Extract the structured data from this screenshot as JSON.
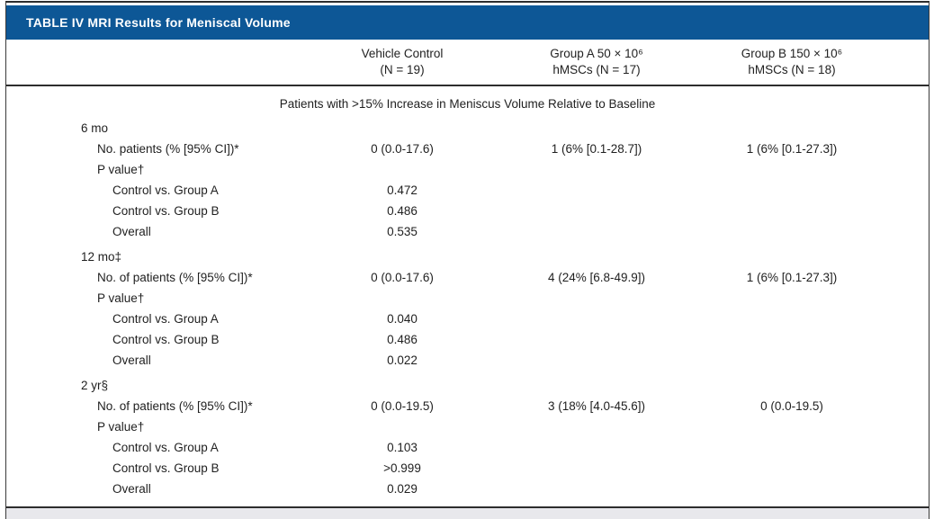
{
  "table": {
    "title": "TABLE IV MRI Results for Meniscal Volume",
    "accent_color": "#0d5796",
    "columns": {
      "vehicle": {
        "line1": "Vehicle Control",
        "line2": "(N = 19)"
      },
      "group_a": {
        "line1": "Group A 50 × 10⁶",
        "line2": "hMSCs (N = 17)"
      },
      "group_b": {
        "line1": "Group B 150 × 10⁶",
        "line2": "hMSCs (N = 18)"
      }
    },
    "span_header": "Patients with >15% Increase in Meniscus Volume Relative to Baseline",
    "rows": [
      {
        "label": "6 mo"
      },
      {
        "label": "No. patients (% [95% CI])*",
        "v1": "0 (0.0-17.6)",
        "v2": "1 (6% [0.1-28.7])",
        "v3": "1 (6% [0.1-27.3])"
      },
      {
        "label": "P value†"
      },
      {
        "label": "Control vs. Group A",
        "v1": "0.472"
      },
      {
        "label": "Control vs. Group B",
        "v1": "0.486"
      },
      {
        "label": "Overall",
        "v1": "0.535"
      },
      {
        "label": "12 mo‡"
      },
      {
        "label": "No. of patients (% [95% CI])*",
        "v1": "0 (0.0-17.6)",
        "v2": "4 (24% [6.8-49.9])",
        "v3": "1 (6% [0.1-27.3])"
      },
      {
        "label": "P value†"
      },
      {
        "label": "Control vs. Group A",
        "v1": "0.040"
      },
      {
        "label": "Control vs. Group B",
        "v1": "0.486"
      },
      {
        "label": "Overall",
        "v1": "0.022"
      },
      {
        "label": "2 yr§"
      },
      {
        "label": "No. of patients (% [95% CI])*",
        "v1": "0 (0.0-19.5)",
        "v2": "3 (18% [4.0-45.6])",
        "v3": "0 (0.0-19.5)"
      },
      {
        "label": "P value†"
      },
      {
        "label": "Control vs. Group A",
        "v1": "0.103"
      },
      {
        "label": "Control vs. Group B",
        "v1": ">0.999"
      },
      {
        "label": "Overall",
        "v1": "0.029"
      }
    ]
  }
}
